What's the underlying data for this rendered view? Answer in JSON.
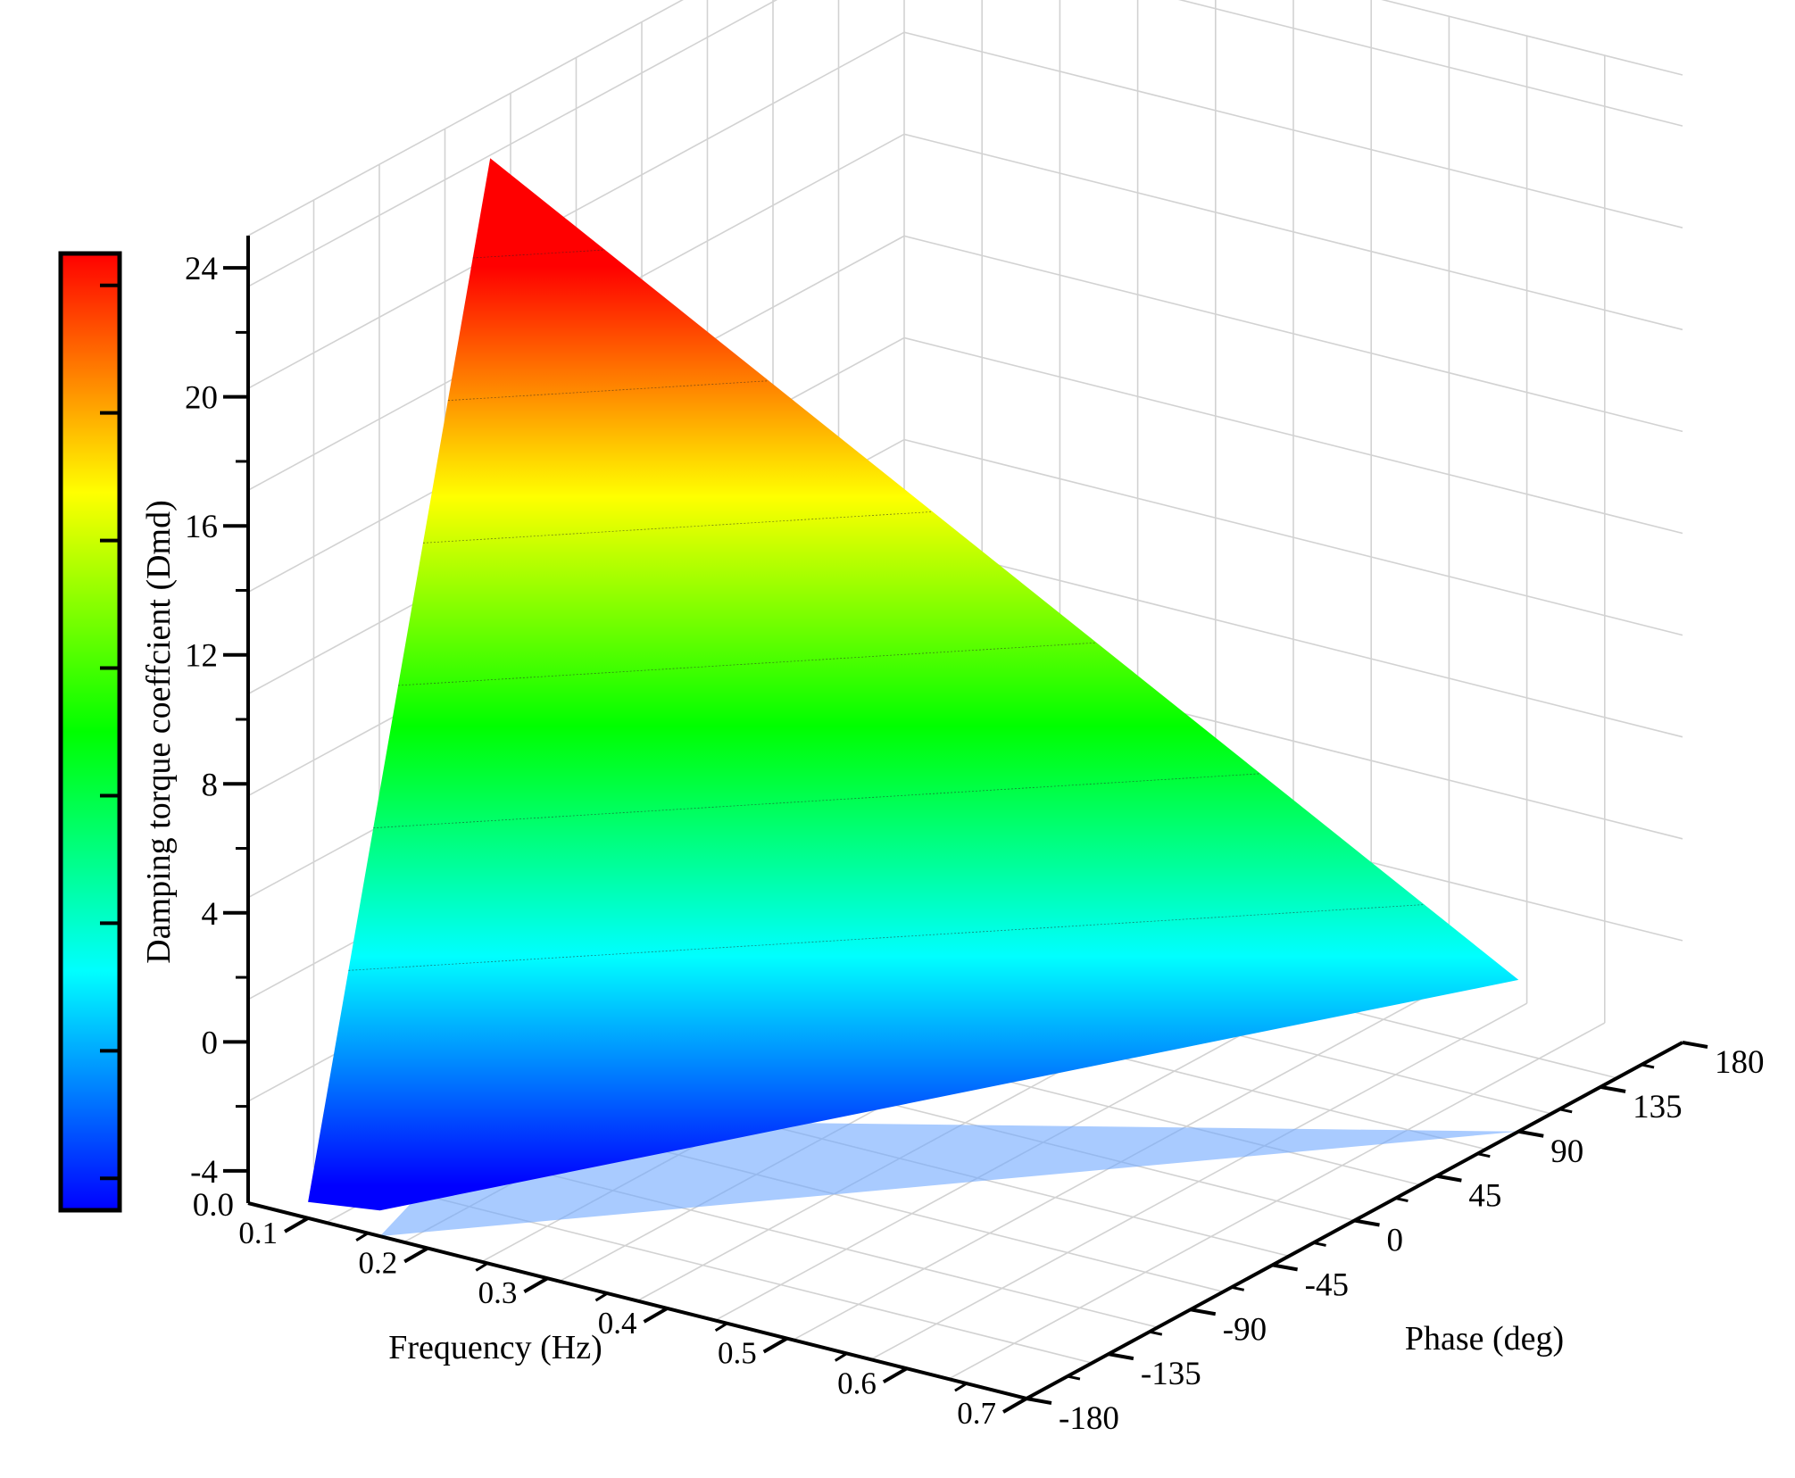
{
  "chart_data": {
    "type": "surface3d",
    "title": "",
    "xlabel": "Frequency (Hz)",
    "ylabel": "Phase (deg)",
    "zlabel": "",
    "colorbar_label": "Damping torque coeffcient (Dmd)",
    "xlim": [
      0.05,
      0.7
    ],
    "ylim": [
      -180,
      180
    ],
    "zlim": [
      -5,
      25
    ],
    "x_ticks": [
      "0.1",
      "0.2",
      "0.3",
      "0.4",
      "0.5",
      "0.6",
      "0.7"
    ],
    "y_ticks": [
      "-180",
      "-135",
      "-90",
      "-45",
      "0",
      "45",
      "90",
      "135",
      "180"
    ],
    "z_ticks": [
      "-4",
      "0",
      "4",
      "8",
      "12",
      "16",
      "20",
      "24"
    ],
    "floor_tick": "0.0",
    "colormap": [
      "#0000ff",
      "#00ffff",
      "#00ff00",
      "#ffff00",
      "#ff0000"
    ],
    "surface_vertices": [
      {
        "frequency": 0.1,
        "phase": -80,
        "dmd": 24.8
      },
      {
        "frequency": 0.1,
        "phase": -180,
        "dmd": -4.5
      },
      {
        "frequency": 0.7,
        "phase": 90,
        "dmd": -0.3
      },
      {
        "frequency": 0.16,
        "phase": -180,
        "dmd": -4.2
      }
    ],
    "floor_projection": {
      "color": "#6fa8ff",
      "opacity": 0.6
    },
    "grid": true,
    "colorbar_position": "left"
  }
}
